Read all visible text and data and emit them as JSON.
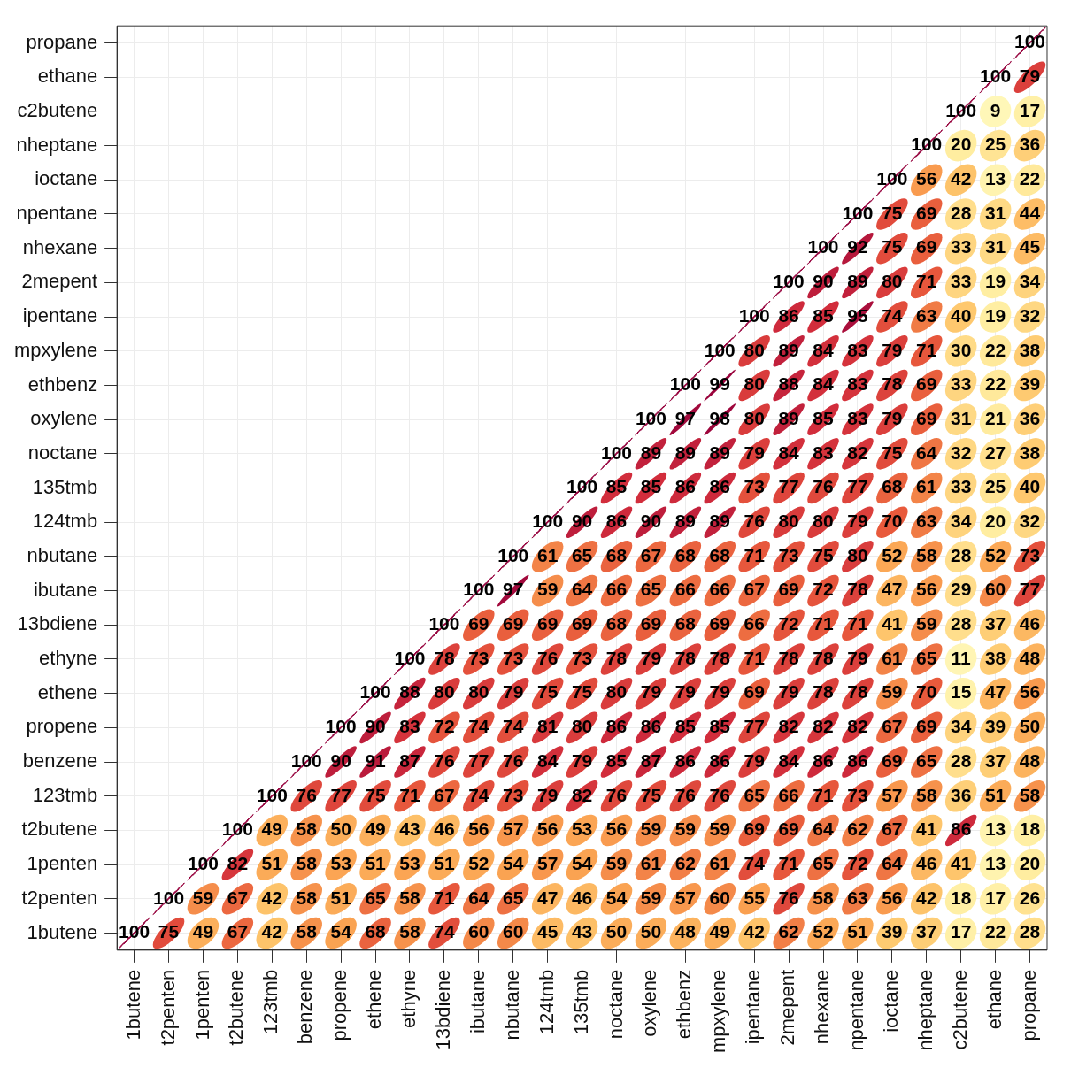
{
  "chart_data": {
    "type": "heatmap",
    "grid": true,
    "data_labels": true,
    "categories": [
      "1butene",
      "t2penten",
      "1penten",
      "t2butene",
      "123tmb",
      "benzene",
      "propene",
      "ethene",
      "ethyne",
      "13bdiene",
      "ibutane",
      "nbutane",
      "124tmb",
      "135tmb",
      "noctane",
      "oxylene",
      "ethbenz",
      "mpxylene",
      "ipentane",
      "2mepent",
      "nhexane",
      "npentane",
      "ioctane",
      "nheptane",
      "c2butene",
      "ethane",
      "propane"
    ],
    "y_categories": [
      "propane",
      "ethane",
      "c2butene",
      "nheptane",
      "ioctane",
      "npentane",
      "nhexane",
      "2mepent",
      "ipentane",
      "mpxylene",
      "ethbenz",
      "oxylene",
      "noctane",
      "135tmb",
      "124tmb",
      "nbutane",
      "ibutane",
      "13bdiene",
      "ethyne",
      "ethene",
      "propene",
      "benzene",
      "123tmb",
      "t2butene",
      "1penten",
      "t2penten",
      "1butene"
    ],
    "cells": [
      [
        null,
        null,
        null,
        null,
        null,
        null,
        null,
        null,
        null,
        null,
        null,
        null,
        null,
        null,
        null,
        null,
        null,
        null,
        null,
        null,
        null,
        null,
        null,
        null,
        null,
        null,
        100
      ],
      [
        null,
        null,
        null,
        null,
        null,
        null,
        null,
        null,
        null,
        null,
        null,
        null,
        null,
        null,
        null,
        null,
        null,
        null,
        null,
        null,
        null,
        null,
        null,
        null,
        null,
        100,
        79
      ],
      [
        null,
        null,
        null,
        null,
        null,
        null,
        null,
        null,
        null,
        null,
        null,
        null,
        null,
        null,
        null,
        null,
        null,
        null,
        null,
        null,
        null,
        null,
        null,
        null,
        100,
        9,
        17
      ],
      [
        null,
        null,
        null,
        null,
        null,
        null,
        null,
        null,
        null,
        null,
        null,
        null,
        null,
        null,
        null,
        null,
        null,
        null,
        null,
        null,
        null,
        null,
        null,
        100,
        20,
        25,
        36
      ],
      [
        null,
        null,
        null,
        null,
        null,
        null,
        null,
        null,
        null,
        null,
        null,
        null,
        null,
        null,
        null,
        null,
        null,
        null,
        null,
        null,
        null,
        null,
        100,
        56,
        42,
        13,
        22
      ],
      [
        null,
        null,
        null,
        null,
        null,
        null,
        null,
        null,
        null,
        null,
        null,
        null,
        null,
        null,
        null,
        null,
        null,
        null,
        null,
        null,
        null,
        100,
        75,
        69,
        28,
        31,
        44
      ],
      [
        null,
        null,
        null,
        null,
        null,
        null,
        null,
        null,
        null,
        null,
        null,
        null,
        null,
        null,
        null,
        null,
        null,
        null,
        null,
        null,
        100,
        92,
        75,
        69,
        33,
        31,
        45
      ],
      [
        null,
        null,
        null,
        null,
        null,
        null,
        null,
        null,
        null,
        null,
        null,
        null,
        null,
        null,
        null,
        null,
        null,
        null,
        null,
        100,
        90,
        89,
        80,
        71,
        33,
        19,
        34
      ],
      [
        null,
        null,
        null,
        null,
        null,
        null,
        null,
        null,
        null,
        null,
        null,
        null,
        null,
        null,
        null,
        null,
        null,
        null,
        100,
        86,
        85,
        95,
        74,
        63,
        40,
        19,
        32
      ],
      [
        null,
        null,
        null,
        null,
        null,
        null,
        null,
        null,
        null,
        null,
        null,
        null,
        null,
        null,
        null,
        null,
        null,
        100,
        80,
        89,
        84,
        83,
        79,
        71,
        30,
        22,
        38
      ],
      [
        null,
        null,
        null,
        null,
        null,
        null,
        null,
        null,
        null,
        null,
        null,
        null,
        null,
        null,
        null,
        null,
        100,
        99,
        80,
        88,
        84,
        83,
        78,
        69,
        33,
        22,
        39
      ],
      [
        null,
        null,
        null,
        null,
        null,
        null,
        null,
        null,
        null,
        null,
        null,
        null,
        null,
        null,
        null,
        100,
        97,
        98,
        80,
        89,
        85,
        83,
        79,
        69,
        31,
        21,
        36
      ],
      [
        null,
        null,
        null,
        null,
        null,
        null,
        null,
        null,
        null,
        null,
        null,
        null,
        null,
        null,
        100,
        89,
        89,
        89,
        79,
        84,
        83,
        82,
        75,
        64,
        32,
        27,
        38
      ],
      [
        null,
        null,
        null,
        null,
        null,
        null,
        null,
        null,
        null,
        null,
        null,
        null,
        null,
        100,
        85,
        85,
        86,
        86,
        73,
        77,
        76,
        77,
        68,
        61,
        33,
        25,
        40
      ],
      [
        null,
        null,
        null,
        null,
        null,
        null,
        null,
        null,
        null,
        null,
        null,
        null,
        100,
        90,
        86,
        90,
        89,
        89,
        76,
        80,
        80,
        79,
        70,
        63,
        34,
        20,
        32
      ],
      [
        null,
        null,
        null,
        null,
        null,
        null,
        null,
        null,
        null,
        null,
        null,
        100,
        61,
        65,
        68,
        67,
        68,
        68,
        71,
        73,
        75,
        80,
        52,
        58,
        28,
        52,
        73
      ],
      [
        null,
        null,
        null,
        null,
        null,
        null,
        null,
        null,
        null,
        null,
        100,
        97,
        59,
        64,
        66,
        65,
        66,
        66,
        67,
        69,
        72,
        78,
        47,
        56,
        29,
        60,
        77
      ],
      [
        null,
        null,
        null,
        null,
        null,
        null,
        null,
        null,
        null,
        100,
        69,
        69,
        69,
        69,
        68,
        69,
        68,
        69,
        66,
        72,
        71,
        71,
        41,
        59,
        28,
        37,
        46
      ],
      [
        null,
        null,
        null,
        null,
        null,
        null,
        null,
        null,
        100,
        78,
        73,
        73,
        76,
        73,
        78,
        79,
        78,
        78,
        71,
        78,
        78,
        79,
        61,
        65,
        11,
        38,
        48
      ],
      [
        null,
        null,
        null,
        null,
        null,
        null,
        null,
        100,
        88,
        80,
        80,
        79,
        75,
        75,
        80,
        79,
        79,
        79,
        69,
        79,
        78,
        78,
        59,
        70,
        15,
        47,
        56
      ],
      [
        null,
        null,
        null,
        null,
        null,
        null,
        100,
        90,
        83,
        72,
        74,
        74,
        81,
        80,
        86,
        86,
        85,
        85,
        77,
        82,
        82,
        82,
        67,
        69,
        34,
        39,
        50
      ],
      [
        null,
        null,
        null,
        null,
        null,
        100,
        90,
        91,
        87,
        76,
        77,
        76,
        84,
        79,
        85,
        87,
        86,
        86,
        79,
        84,
        86,
        86,
        69,
        65,
        28,
        37,
        48
      ],
      [
        null,
        null,
        null,
        null,
        100,
        76,
        77,
        75,
        71,
        67,
        74,
        73,
        79,
        82,
        76,
        75,
        76,
        76,
        65,
        66,
        71,
        73,
        57,
        58,
        36,
        51,
        58
      ],
      [
        null,
        null,
        null,
        100,
        49,
        58,
        50,
        49,
        43,
        46,
        56,
        57,
        56,
        53,
        56,
        59,
        59,
        59,
        69,
        69,
        64,
        62,
        67,
        41,
        86,
        13,
        18
      ],
      [
        null,
        null,
        100,
        82,
        51,
        58,
        53,
        51,
        53,
        51,
        52,
        54,
        57,
        54,
        59,
        61,
        62,
        61,
        74,
        71,
        65,
        72,
        64,
        46,
        41,
        13,
        20
      ],
      [
        null,
        100,
        59,
        67,
        42,
        58,
        51,
        65,
        58,
        71,
        64,
        65,
        47,
        46,
        54,
        59,
        57,
        60,
        55,
        76,
        58,
        63,
        56,
        42,
        18,
        17,
        26
      ],
      [
        100,
        75,
        49,
        67,
        42,
        58,
        54,
        68,
        58,
        74,
        60,
        60,
        45,
        43,
        50,
        50,
        48,
        49,
        42,
        62,
        52,
        51,
        39,
        37,
        17,
        22,
        28
      ]
    ]
  }
}
